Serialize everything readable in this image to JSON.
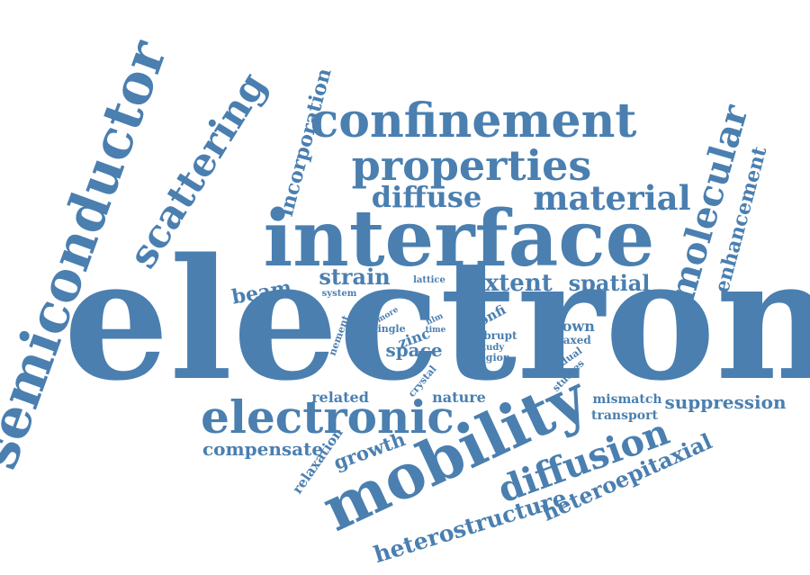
{
  "color": "#4a7fb0",
  "words": [
    "electron",
    "interface",
    "semiconductor",
    "mobility",
    "confinement",
    "properties",
    "electronic",
    "scattering",
    "material",
    "diffusion",
    "molecular",
    "diffuse",
    "incorporation",
    "enhancement",
    "heterostructure",
    "heteroepitaxial",
    "strain",
    "extent",
    "spatial",
    "beam",
    "suppression",
    "compensate",
    "growth",
    "relaxation",
    "related",
    "nature",
    "mismatch",
    "transport",
    "space",
    "grown",
    "relaxed",
    "confi",
    "zinc",
    "abrupt",
    "study",
    "region",
    "gradual",
    "studies",
    "crystal",
    "lattice",
    "system",
    "nement",
    "more",
    "single",
    "film",
    "time"
  ]
}
